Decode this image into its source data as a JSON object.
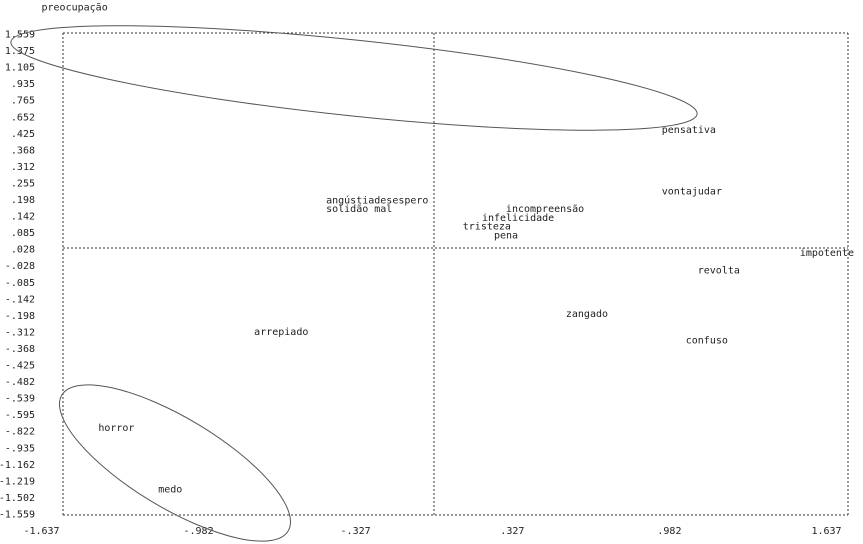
{
  "chart_data": {
    "type": "scatter",
    "title": "",
    "xlabel": "",
    "ylabel": "",
    "xlim": [
      -1.637,
      1.637
    ],
    "ylim": [
      -1.559,
      1.559
    ],
    "grid": "dashed quadrant frame",
    "y_tick_labels": [
      "1.559",
      "1.375",
      "1.105",
      "0.935",
      "0.765",
      "0.652",
      "0.425",
      "0.368",
      "0.312",
      "0.255",
      "0.198",
      "0.142",
      "0.085",
      "0.028",
      "-0.028",
      "-0.085",
      "-0.142",
      "-0.198",
      "-0.312",
      "-0.368",
      "-0.425",
      "-0.482",
      "-0.539",
      "-0.595",
      "-0.822",
      "-0.935",
      "-1.162",
      "-1.219",
      "-1.502",
      "-1.559"
    ],
    "y_tick_text": [
      "1.559",
      "1.375",
      "1.105",
      ".935",
      ".765",
      ".652",
      ".425",
      ".368",
      ".312",
      ".255",
      ".198",
      ".142",
      ".085",
      ".028",
      "-.028",
      "-.085",
      "-.142",
      "-.198",
      "-.312",
      "-.368",
      "-.425",
      "-.482",
      "-.539",
      "-.595",
      "-.822",
      "-.935",
      "-1.162",
      "-1.219",
      "-1.502",
      "-1.559"
    ],
    "x_tick_values": [
      -1.637,
      -0.982,
      -0.327,
      0.327,
      0.982,
      1.637
    ],
    "x_tick_text": [
      "-1.637",
      "-.982",
      "-.327",
      ".327",
      ".982",
      "1.637"
    ],
    "points": [
      {
        "label": "preocupação",
        "x": -1.637,
        "y": 1.559
      },
      {
        "label": "pensativa",
        "x": 0.95,
        "y": 0.765
      },
      {
        "label": "vontajudar",
        "x": 0.95,
        "y": 0.368
      },
      {
        "label": "angústiadesespero",
        "x": -0.45,
        "y": 0.312
      },
      {
        "label": "solidão mal",
        "x": -0.45,
        "y": 0.255
      },
      {
        "label": "incompreensão",
        "x": 0.3,
        "y": 0.255
      },
      {
        "label": "infelicidade",
        "x": 0.2,
        "y": 0.198
      },
      {
        "label": "tristeza",
        "x": 0.12,
        "y": 0.142
      },
      {
        "label": "pena",
        "x": 0.25,
        "y": 0.085
      },
      {
        "label": "impotente",
        "x": 1.637,
        "y": -0.028
      },
      {
        "label": "revolta",
        "x": 1.1,
        "y": -0.142
      },
      {
        "label": "zangado",
        "x": 0.55,
        "y": -0.425
      },
      {
        "label": "arrepiado",
        "x": -0.75,
        "y": -0.539
      },
      {
        "label": "confuso",
        "x": 1.05,
        "y": -0.595
      },
      {
        "label": "horror",
        "x": -1.4,
        "y": -1.162
      },
      {
        "label": "medo",
        "x": -1.1,
        "y": -1.559
      }
    ],
    "annotations": [
      "ellipse around preocupação and pensativa",
      "ellipse around horror and medo"
    ]
  }
}
